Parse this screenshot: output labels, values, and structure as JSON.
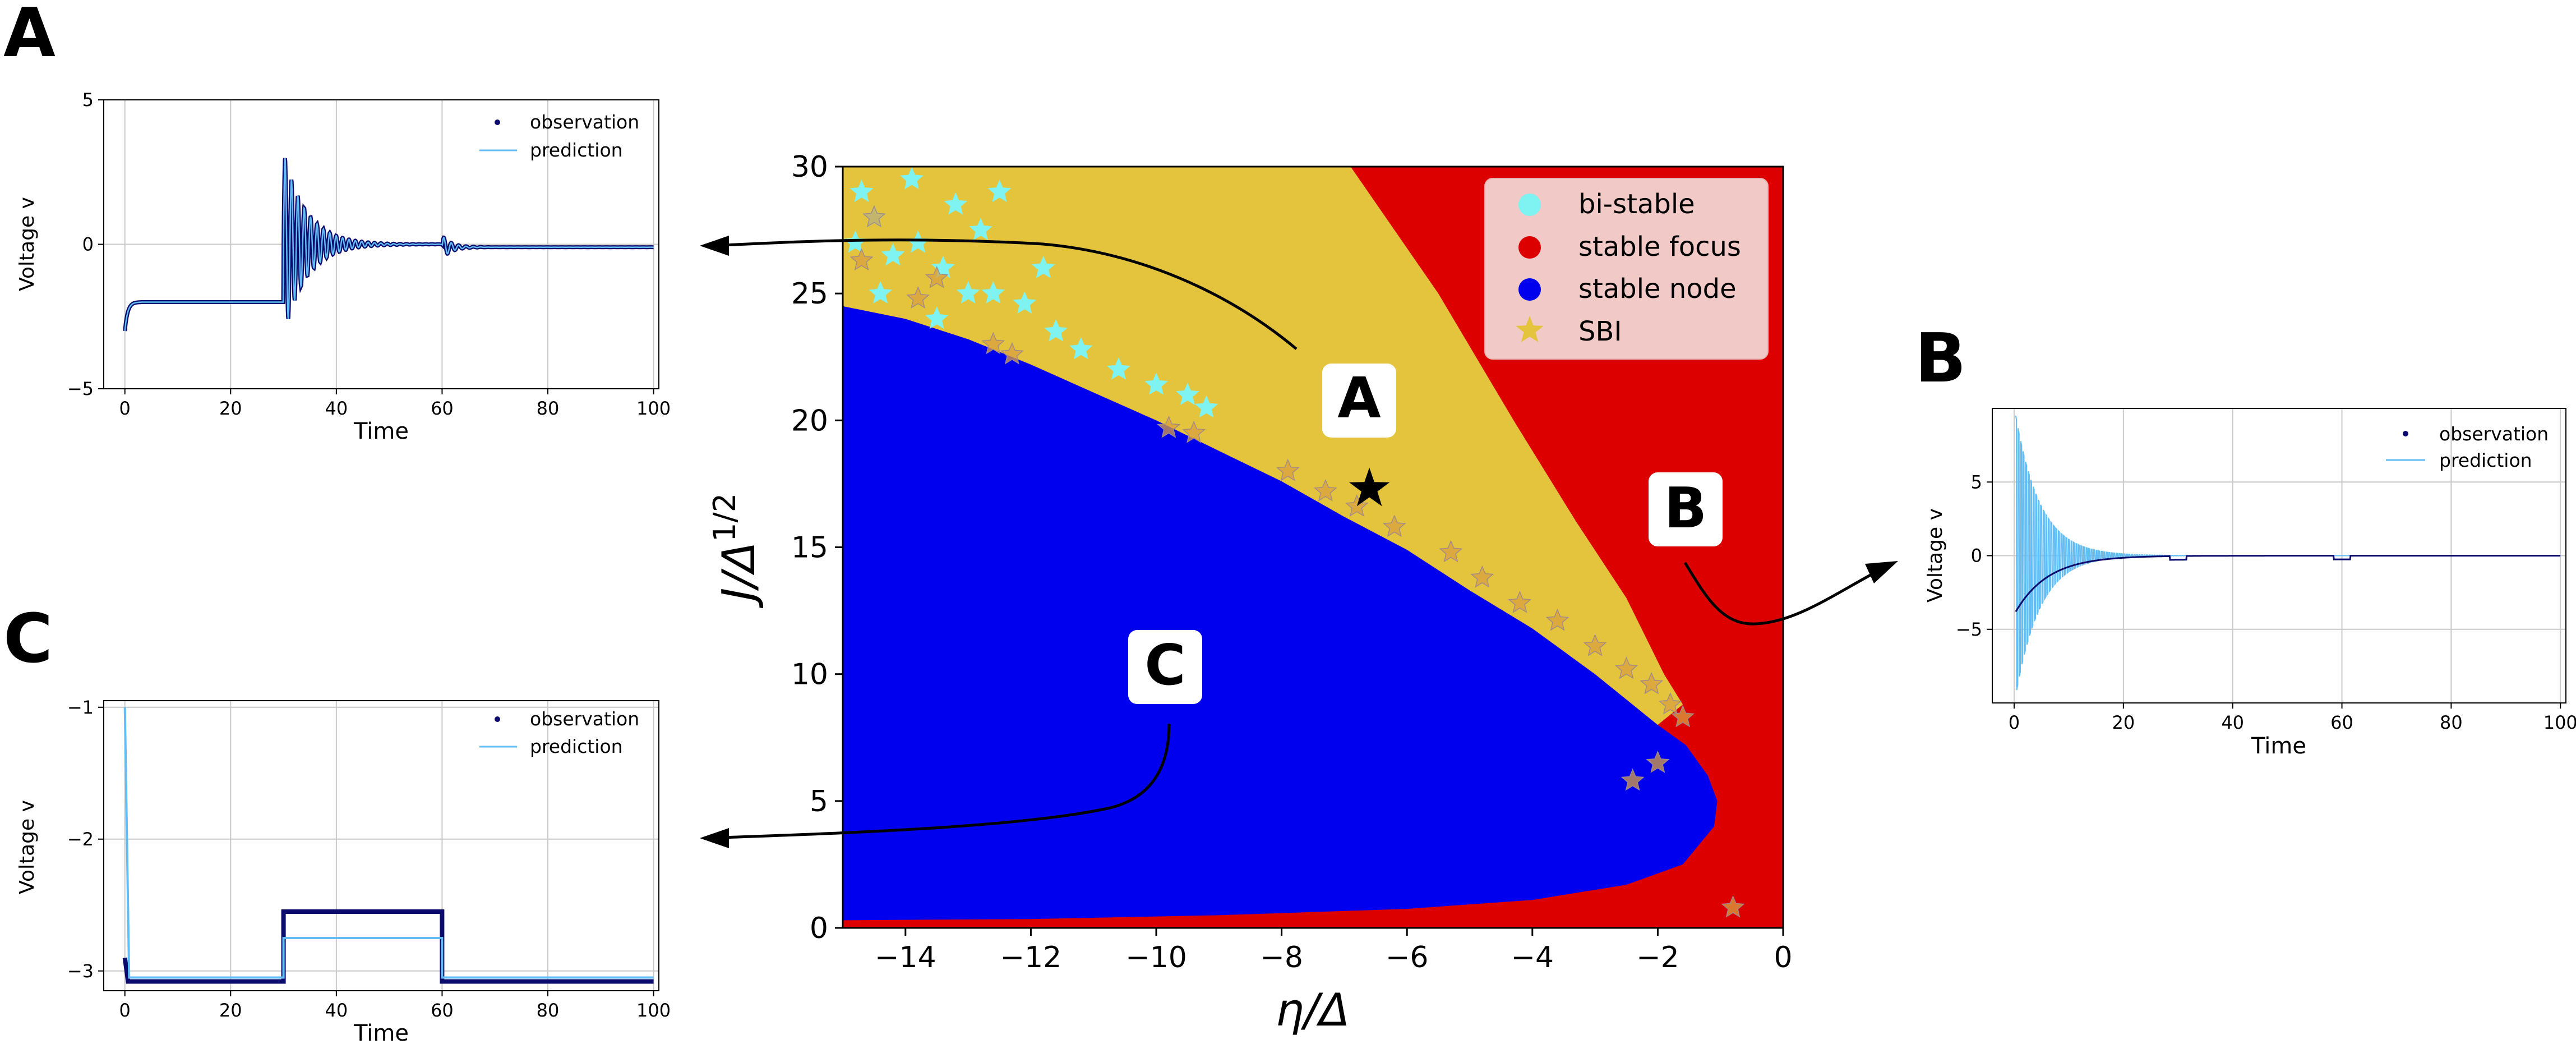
{
  "panel_letters": {
    "A": "A",
    "B": "B",
    "C": "C"
  },
  "colors": {
    "bistable": "#7ff2f2",
    "focus": "#dd0000",
    "node": "#0000ee",
    "sbi": "#e4c43c",
    "observation": "#0b0b6e",
    "prediction": "#62bdf4",
    "legend_bg": "#f1c9c6"
  },
  "chart_data": [
    {
      "id": "phase-diagram",
      "type": "scatter",
      "xlabel": "η/Δ",
      "ylabel": "J/Δ",
      "ylabel_sup": "1/2",
      "xlim": [
        -15,
        0
      ],
      "ylim": [
        0,
        30
      ],
      "xticks": [
        -14,
        -12,
        -10,
        -8,
        -6,
        -4,
        -2,
        0
      ],
      "yticks": [
        0,
        5,
        10,
        15,
        20,
        25,
        30
      ],
      "legend": {
        "placement": "top-right",
        "entries": [
          "bi-stable",
          "stable focus",
          "stable node",
          "SBI"
        ]
      },
      "regions": [
        {
          "name": "stable focus",
          "description": "background"
        },
        {
          "name": "stable node",
          "boundary": [
            [
              -15,
              0.3
            ],
            [
              -12,
              0.35
            ],
            [
              -9,
              0.5
            ],
            [
              -6,
              0.75
            ],
            [
              -4,
              1.1
            ],
            [
              -2.5,
              1.7
            ],
            [
              -1.6,
              2.5
            ],
            [
              -1.1,
              4
            ],
            [
              -1.05,
              5
            ],
            [
              -1.2,
              6
            ],
            [
              -1.55,
              7.2
            ],
            [
              -2,
              8
            ],
            [
              -2.5,
              9
            ],
            [
              -3,
              10
            ],
            [
              -4,
              11.8
            ],
            [
              -5,
              13.3
            ],
            [
              -6,
              14.9
            ],
            [
              -7,
              16.2
            ],
            [
              -8,
              17.6
            ],
            [
              -9,
              18.8
            ],
            [
              -10,
              20
            ],
            [
              -11,
              21.1
            ],
            [
              -12,
              22.2
            ],
            [
              -13,
              23.2
            ],
            [
              -14,
              24
            ],
            [
              -15,
              24.5
            ]
          ]
        },
        {
          "name": "SBI",
          "boundary": [
            [
              -15,
              30
            ],
            [
              -13.2,
              30
            ],
            [
              -10,
              30
            ],
            [
              -8,
              30
            ],
            [
              -6.9,
              30
            ],
            [
              -5.5,
              25
            ],
            [
              -4.3,
              20
            ],
            [
              -3.3,
              16
            ],
            [
              -2.5,
              13
            ],
            [
              -1.9,
              10
            ],
            [
              -1.6,
              8.8
            ],
            [
              -2,
              8
            ],
            [
              -2.5,
              9
            ],
            [
              -3,
              10
            ],
            [
              -4,
              11.8
            ],
            [
              -5,
              13.3
            ],
            [
              -6,
              14.9
            ],
            [
              -7,
              16.2
            ],
            [
              -8,
              17.6
            ],
            [
              -9,
              18.8
            ],
            [
              -10,
              20
            ],
            [
              -11,
              21.1
            ],
            [
              -12,
              22.2
            ],
            [
              -13,
              23.2
            ],
            [
              -14,
              24
            ],
            [
              -15,
              24.5
            ]
          ]
        }
      ],
      "bistable_points": [
        [
          -14.7,
          29
        ],
        [
          -14.5,
          28
        ],
        [
          -14.8,
          27
        ],
        [
          -14.2,
          26.5
        ],
        [
          -13.8,
          27
        ],
        [
          -13.4,
          26
        ],
        [
          -13,
          25
        ],
        [
          -13.5,
          24
        ],
        [
          -12.6,
          25
        ],
        [
          -12.1,
          24.6
        ],
        [
          -11.6,
          23.5
        ],
        [
          -11.2,
          22.8
        ],
        [
          -10.6,
          22
        ],
        [
          -10,
          21.4
        ],
        [
          -9.5,
          21
        ],
        [
          -9.2,
          20.5
        ],
        [
          -12.8,
          27.5
        ],
        [
          -11.8,
          26
        ],
        [
          -14.4,
          25
        ],
        [
          -13.2,
          28.5
        ],
        [
          -12.5,
          29
        ],
        [
          -13.9,
          29.5
        ]
      ],
      "sbi_points": [
        [
          -14.7,
          26.3
        ],
        [
          -14.5,
          28
        ],
        [
          -13.8,
          24.8
        ],
        [
          -13.5,
          25.6
        ],
        [
          -12.6,
          23
        ],
        [
          -12.3,
          22.6
        ],
        [
          -9.8,
          19.7
        ],
        [
          -9.4,
          19.5
        ],
        [
          -7.9,
          18
        ],
        [
          -7.3,
          17.2
        ],
        [
          -6.8,
          16.6
        ],
        [
          -6.2,
          15.8
        ],
        [
          -5.3,
          14.8
        ],
        [
          -4.8,
          13.8
        ],
        [
          -4.2,
          12.8
        ],
        [
          -3.6,
          12.1
        ],
        [
          -3,
          11.1
        ],
        [
          -2.5,
          10.2
        ],
        [
          -2.1,
          9.6
        ],
        [
          -1.8,
          8.8
        ],
        [
          -1.6,
          8.3
        ],
        [
          -2.4,
          5.8
        ],
        [
          -2,
          6.5
        ],
        [
          -0.8,
          0.8
        ]
      ],
      "highlight_point": {
        "label": "star",
        "x": -6.6,
        "y": 17.3
      },
      "callouts": [
        {
          "label": "A",
          "x": -6.8,
          "y": 20.8
        },
        {
          "label": "B",
          "x": -1.1,
          "y": 16.2
        },
        {
          "label": "C",
          "x": -10.0,
          "y": 10.3
        }
      ]
    },
    {
      "id": "panel-A",
      "type": "line",
      "xlabel": "Time",
      "ylabel": "Voltage v",
      "xlim": [
        -4,
        101
      ],
      "ylim": [
        -5,
        5
      ],
      "xticks": [
        0,
        20,
        40,
        60,
        80,
        100
      ],
      "yticks": [
        -5,
        0,
        5
      ],
      "legend": {
        "placement": "top-right",
        "entries": [
          "observation",
          "prediction"
        ]
      },
      "series": [
        {
          "name": "observation",
          "signal": "piecewise step",
          "segments": [
            [
              0,
              30,
              -2.0
            ],
            [
              30,
              60,
              0.0
            ],
            [
              60,
              100,
              -0.1
            ]
          ],
          "transients": [
            [
              0,
              -3.0,
              1.5,
              "decay"
            ],
            [
              30,
              3.2,
              15,
              "oscillation"
            ],
            [
              60,
              0.4,
              6,
              "oscillation"
            ]
          ]
        },
        {
          "name": "prediction",
          "signal": "piecewise step",
          "segments": [
            [
              0,
              30,
              -2.0
            ],
            [
              30,
              60,
              0.0
            ],
            [
              60,
              100,
              -0.1
            ]
          ],
          "transients": [
            [
              0,
              -3.0,
              1.5,
              "decay"
            ],
            [
              30,
              3.2,
              15,
              "oscillation"
            ],
            [
              60,
              0.4,
              6,
              "oscillation"
            ]
          ]
        }
      ]
    },
    {
      "id": "panel-B",
      "type": "line",
      "xlabel": "Time",
      "ylabel": "Voltage v",
      "xlim": [
        -4,
        101
      ],
      "ylim": [
        -10,
        10
      ],
      "xticks": [
        0,
        20,
        40,
        60,
        80,
        100
      ],
      "yticks": [
        -5,
        0,
        5
      ],
      "legend": {
        "placement": "top-right",
        "entries": [
          "observation",
          "prediction"
        ]
      },
      "series": [
        {
          "name": "observation",
          "envelope_start": 3.8,
          "decay_time": 6,
          "baseline": 0
        },
        {
          "name": "prediction",
          "envelope_start": 9.5,
          "decay_time": 4.5,
          "baseline": 0
        }
      ]
    },
    {
      "id": "panel-C",
      "type": "line",
      "xlabel": "Time",
      "ylabel": "Voltage v",
      "xlim": [
        -4,
        101
      ],
      "ylim": [
        -3.15,
        -0.95
      ],
      "xticks": [
        0,
        20,
        40,
        60,
        80,
        100
      ],
      "yticks": [
        -3,
        -2,
        -1
      ],
      "legend": {
        "placement": "top-right",
        "entries": [
          "observation",
          "prediction"
        ]
      },
      "series": [
        {
          "name": "observation",
          "segments": [
            [
              0,
              30,
              -3.08
            ],
            [
              30,
              60,
              -2.55
            ],
            [
              60,
              100,
              -3.08
            ]
          ]
        },
        {
          "name": "prediction",
          "segments": [
            [
              0,
              30,
              -3.05
            ],
            [
              30,
              60,
              -2.75
            ],
            [
              60,
              100,
              -3.05
            ]
          ],
          "initial": -1.0
        }
      ]
    }
  ]
}
